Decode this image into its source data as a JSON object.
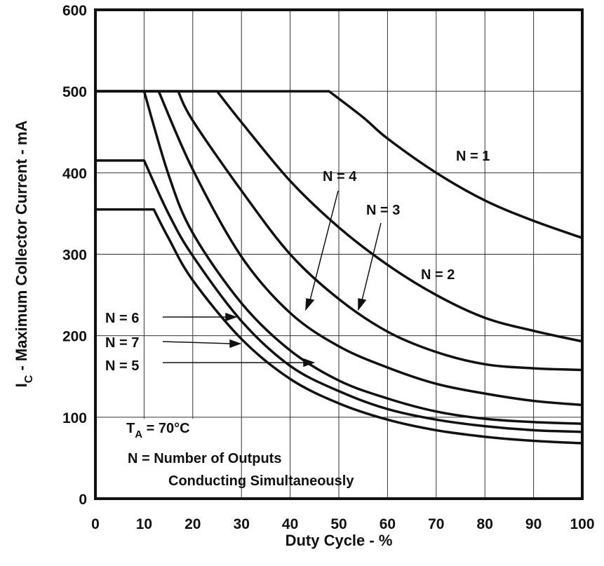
{
  "chart_data": {
    "type": "line",
    "title": "",
    "xlabel": "Duty Cycle -  %",
    "ylabel_main": "I",
    "ylabel_sub": "C",
    "ylabel_rest": " - Maximum Collector Current - mA",
    "xlim": [
      0,
      100
    ],
    "ylim": [
      0,
      600
    ],
    "x_ticks": [
      0,
      10,
      20,
      30,
      40,
      50,
      60,
      70,
      80,
      90,
      100
    ],
    "y_ticks": [
      0,
      100,
      200,
      300,
      400,
      500,
      600
    ],
    "grid": true,
    "series": [
      {
        "name": "N = 1",
        "x": [
          0,
          48,
          55,
          60,
          70,
          80,
          90,
          100
        ],
        "y": [
          500,
          500,
          468,
          442,
          400,
          366,
          341,
          320
        ]
      },
      {
        "name": "N = 2",
        "x": [
          0,
          25,
          30,
          40,
          50,
          60,
          70,
          80,
          90,
          100
        ],
        "y": [
          500,
          500,
          462,
          390,
          333,
          287,
          250,
          222,
          206,
          193
        ]
      },
      {
        "name": "N = 3",
        "x": [
          0,
          17,
          20,
          30,
          40,
          50,
          60,
          70,
          80,
          90,
          100
        ],
        "y": [
          500,
          500,
          464,
          378,
          300,
          245,
          205,
          180,
          165,
          160,
          158
        ]
      },
      {
        "name": "N = 4",
        "x": [
          0,
          13,
          20,
          30,
          40,
          50,
          60,
          70,
          80,
          90,
          100
        ],
        "y": [
          500,
          500,
          404,
          297,
          228,
          187,
          161,
          141,
          129,
          120,
          115
        ]
      },
      {
        "name": "N = 5",
        "x": [
          0,
          10,
          15,
          20,
          30,
          40,
          50,
          60,
          70,
          80,
          90,
          100
        ],
        "y": [
          500,
          500,
          398,
          326,
          240,
          182,
          145,
          123,
          107,
          98,
          94,
          92
        ]
      },
      {
        "name": "N = 6",
        "x": [
          0,
          10,
          15,
          20,
          30,
          40,
          50,
          60,
          70,
          80,
          90,
          100
        ],
        "y": [
          415,
          415,
          350,
          298,
          218,
          163,
          132,
          110,
          97,
          89,
          84,
          82
        ]
      },
      {
        "name": "N = 7",
        "x": [
          0,
          12,
          15,
          20,
          30,
          40,
          50,
          60,
          70,
          80,
          90,
          100
        ],
        "y": [
          355,
          355,
          320,
          268,
          196,
          147,
          117,
          97,
          84,
          76,
          71,
          68
        ]
      }
    ],
    "annotations": [
      {
        "text": "N = 1"
      },
      {
        "text": "N = 2"
      },
      {
        "text": "N = 3"
      },
      {
        "text": "N = 4"
      },
      {
        "text": "N = 5"
      },
      {
        "text": "N = 6"
      },
      {
        "text": "N = 7"
      }
    ],
    "note_ta_main": "T",
    "note_ta_sub": "A",
    "note_ta_rest": " = 70°C",
    "note_n_line1": "N = Number of Outputs",
    "note_n_line2": "Conducting Simultaneously"
  }
}
